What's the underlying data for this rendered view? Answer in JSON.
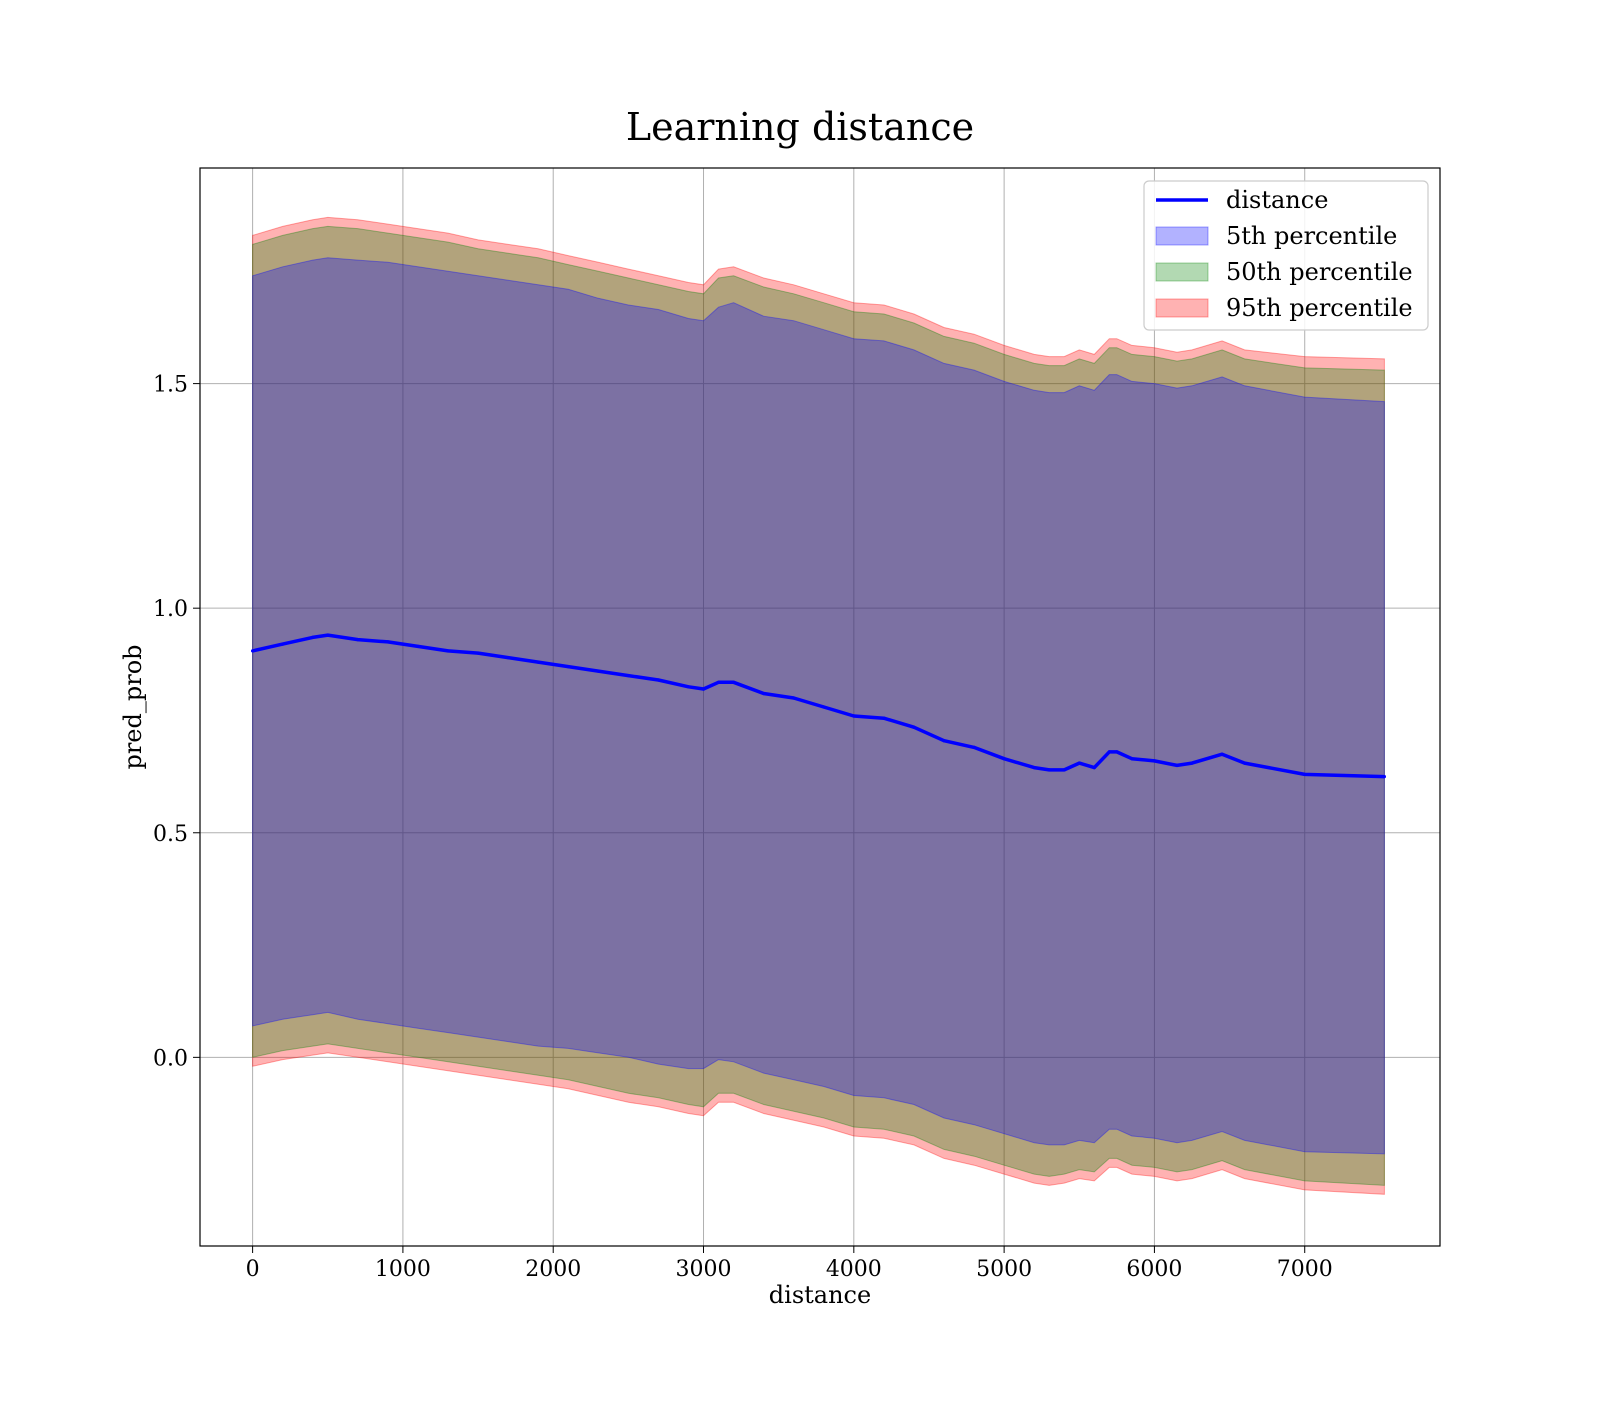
{
  "chart_data": {
    "type": "area",
    "title": "Learning distance",
    "xlabel": "distance",
    "ylabel": "pred_prob",
    "xlim": [
      -350,
      7900
    ],
    "ylim": [
      -0.42,
      1.98
    ],
    "xticks": [
      0,
      1000,
      2000,
      3000,
      4000,
      5000,
      6000,
      7000
    ],
    "xtick_labels": [
      "0",
      "1000",
      "2000",
      "3000",
      "4000",
      "5000",
      "6000",
      "7000"
    ],
    "yticks": [
      0.0,
      0.5,
      1.0,
      1.5
    ],
    "ytick_labels": [
      "0.0",
      "0.5",
      "1.0",
      "1.5"
    ],
    "grid": true,
    "legend_position": "upper right",
    "legend": [
      {
        "label": "distance",
        "kind": "line",
        "color": "#0000ff"
      },
      {
        "label": "5th percentile",
        "kind": "band",
        "color": "#0000ff"
      },
      {
        "label": "50th percentile",
        "kind": "band",
        "color": "#008000"
      },
      {
        "label": "95th percentile",
        "kind": "band",
        "color": "#ff0000"
      }
    ],
    "x": [
      0,
      200,
      400,
      500,
      700,
      900,
      1100,
      1300,
      1500,
      1700,
      1900,
      2100,
      2300,
      2500,
      2700,
      2900,
      3000,
      3100,
      3200,
      3400,
      3600,
      3800,
      4000,
      4200,
      4400,
      4600,
      4800,
      5000,
      5200,
      5300,
      5400,
      5500,
      5600,
      5700,
      5750,
      5850,
      6000,
      6150,
      6250,
      6450,
      6600,
      7000,
      7530
    ],
    "series": [
      {
        "name": "distance",
        "kind": "line",
        "color": "#0000ff",
        "values": [
          0.905,
          0.92,
          0.935,
          0.94,
          0.93,
          0.925,
          0.915,
          0.905,
          0.9,
          0.89,
          0.88,
          0.87,
          0.86,
          0.85,
          0.84,
          0.825,
          0.82,
          0.835,
          0.835,
          0.81,
          0.8,
          0.78,
          0.76,
          0.755,
          0.735,
          0.705,
          0.69,
          0.665,
          0.645,
          0.64,
          0.64,
          0.655,
          0.645,
          0.68,
          0.68,
          0.665,
          0.66,
          0.65,
          0.655,
          0.675,
          0.655,
          0.63,
          0.625
        ]
      },
      {
        "name": "5th percentile",
        "kind": "band",
        "color": "#0000ff",
        "upper": [
          1.74,
          1.76,
          1.775,
          1.78,
          1.775,
          1.77,
          1.76,
          1.75,
          1.74,
          1.73,
          1.72,
          1.71,
          1.69,
          1.675,
          1.665,
          1.645,
          1.64,
          1.67,
          1.68,
          1.65,
          1.64,
          1.62,
          1.6,
          1.595,
          1.575,
          1.545,
          1.53,
          1.505,
          1.485,
          1.48,
          1.48,
          1.495,
          1.485,
          1.52,
          1.52,
          1.505,
          1.5,
          1.49,
          1.495,
          1.515,
          1.495,
          1.47,
          1.46
        ],
        "lower": [
          0.07,
          0.085,
          0.095,
          0.1,
          0.085,
          0.075,
          0.065,
          0.055,
          0.045,
          0.035,
          0.025,
          0.02,
          0.01,
          0.0,
          -0.015,
          -0.025,
          -0.025,
          -0.005,
          -0.01,
          -0.035,
          -0.05,
          -0.065,
          -0.085,
          -0.09,
          -0.105,
          -0.135,
          -0.15,
          -0.17,
          -0.19,
          -0.195,
          -0.195,
          -0.185,
          -0.19,
          -0.16,
          -0.16,
          -0.175,
          -0.18,
          -0.19,
          -0.185,
          -0.165,
          -0.185,
          -0.21,
          -0.215
        ]
      },
      {
        "name": "50th percentile",
        "kind": "band",
        "color": "#008000",
        "upper": [
          1.81,
          1.83,
          1.845,
          1.85,
          1.845,
          1.835,
          1.825,
          1.815,
          1.8,
          1.79,
          1.78,
          1.765,
          1.75,
          1.735,
          1.72,
          1.705,
          1.7,
          1.735,
          1.74,
          1.715,
          1.7,
          1.68,
          1.66,
          1.655,
          1.635,
          1.605,
          1.59,
          1.565,
          1.545,
          1.54,
          1.54,
          1.555,
          1.545,
          1.58,
          1.58,
          1.565,
          1.56,
          1.55,
          1.555,
          1.575,
          1.555,
          1.535,
          1.53
        ],
        "lower": [
          0.0,
          0.015,
          0.025,
          0.03,
          0.02,
          0.01,
          0.0,
          -0.01,
          -0.02,
          -0.03,
          -0.04,
          -0.05,
          -0.065,
          -0.08,
          -0.09,
          -0.105,
          -0.11,
          -0.08,
          -0.08,
          -0.105,
          -0.12,
          -0.135,
          -0.155,
          -0.16,
          -0.175,
          -0.205,
          -0.22,
          -0.24,
          -0.26,
          -0.265,
          -0.26,
          -0.25,
          -0.255,
          -0.225,
          -0.225,
          -0.24,
          -0.245,
          -0.255,
          -0.25,
          -0.23,
          -0.25,
          -0.275,
          -0.285
        ]
      },
      {
        "name": "95th percentile",
        "kind": "band",
        "color": "#ff0000",
        "upper": [
          1.83,
          1.85,
          1.865,
          1.87,
          1.865,
          1.855,
          1.845,
          1.835,
          1.82,
          1.81,
          1.8,
          1.785,
          1.77,
          1.755,
          1.74,
          1.725,
          1.72,
          1.755,
          1.76,
          1.735,
          1.72,
          1.7,
          1.68,
          1.675,
          1.655,
          1.625,
          1.61,
          1.585,
          1.565,
          1.56,
          1.56,
          1.575,
          1.565,
          1.6,
          1.6,
          1.585,
          1.58,
          1.57,
          1.575,
          1.595,
          1.575,
          1.56,
          1.555
        ],
        "lower": [
          -0.02,
          -0.005,
          0.005,
          0.01,
          0.0,
          -0.01,
          -0.02,
          -0.03,
          -0.04,
          -0.05,
          -0.06,
          -0.07,
          -0.085,
          -0.1,
          -0.11,
          -0.125,
          -0.13,
          -0.1,
          -0.1,
          -0.125,
          -0.14,
          -0.155,
          -0.175,
          -0.18,
          -0.195,
          -0.225,
          -0.24,
          -0.26,
          -0.28,
          -0.285,
          -0.28,
          -0.27,
          -0.275,
          -0.245,
          -0.245,
          -0.26,
          -0.265,
          -0.275,
          -0.27,
          -0.25,
          -0.27,
          -0.295,
          -0.305
        ]
      }
    ]
  }
}
